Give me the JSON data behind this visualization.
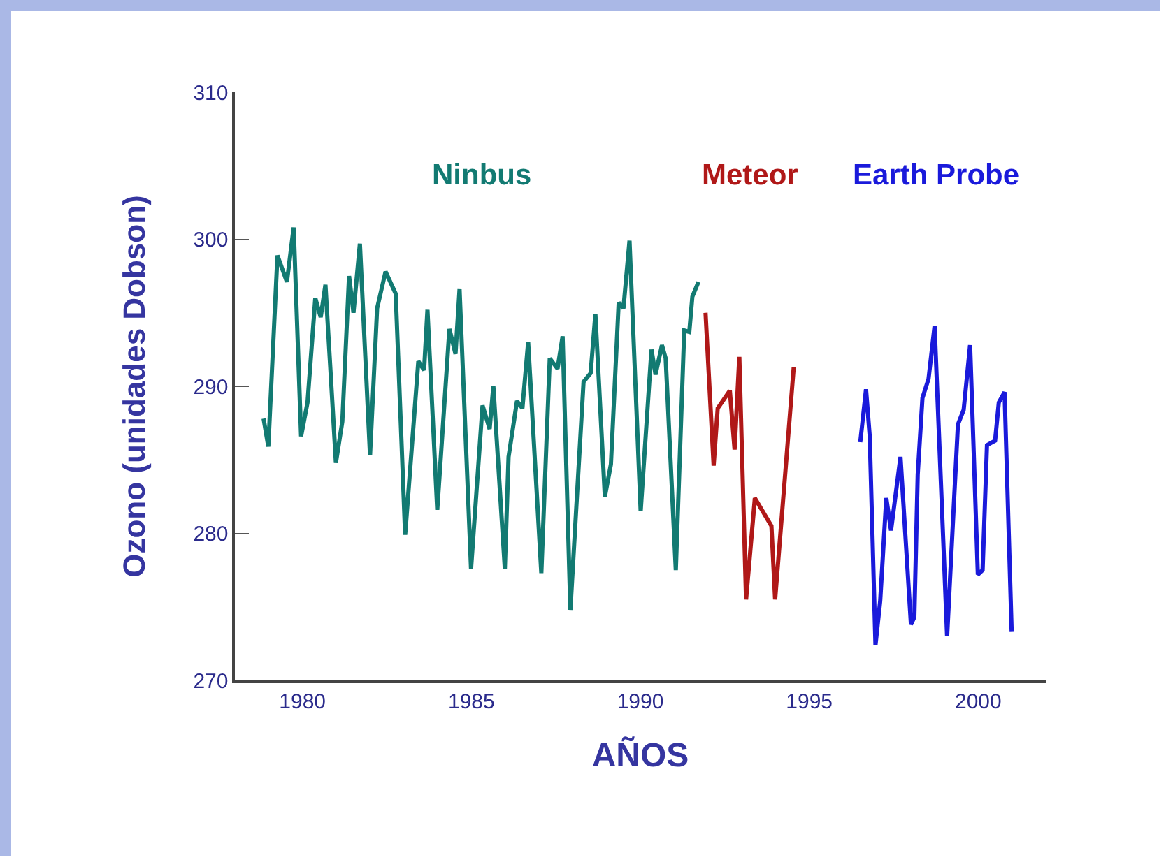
{
  "chart_data": {
    "type": "line",
    "xlabel": "AÑOS",
    "ylabel": "Ozono (unidades Dobson)",
    "xlim": [
      1978,
      2002
    ],
    "ylim": [
      270,
      310
    ],
    "xticks": [
      1980,
      1985,
      1990,
      1995,
      2000
    ],
    "yticks": [
      270,
      280,
      290,
      300,
      310
    ],
    "grid": false,
    "legend": false,
    "marker": "none",
    "line_style": "solid",
    "series": [
      {
        "name": "Ninbus",
        "color": "#127a72",
        "x": [
          1978.85,
          1978.99,
          1979.26,
          1979.54,
          1979.74,
          1979.96,
          1980.15,
          1980.38,
          1980.54,
          1980.68,
          1980.99,
          1981.18,
          1981.38,
          1981.51,
          1981.7,
          1982.0,
          1982.21,
          1982.46,
          1982.76,
          1983.04,
          1983.43,
          1983.6,
          1983.7,
          1983.99,
          1984.35,
          1984.53,
          1984.65,
          1984.99,
          1985.33,
          1985.54,
          1985.65,
          1985.99,
          1986.1,
          1986.35,
          1986.51,
          1986.68,
          1987.07,
          1987.32,
          1987.55,
          1987.7,
          1987.93,
          1988.32,
          1988.53,
          1988.67,
          1988.95,
          1989.13,
          1989.36,
          1989.5,
          1989.68,
          1990.01,
          1990.33,
          1990.45,
          1990.64,
          1990.75,
          1991.05,
          1991.3,
          1991.45,
          1991.54,
          1991.72
        ],
        "values": [
          287.8,
          285.9,
          298.9,
          297.1,
          300.8,
          286.6,
          288.9,
          296.0,
          294.7,
          296.9,
          284.8,
          287.6,
          297.5,
          295.0,
          299.7,
          285.3,
          295.3,
          297.8,
          296.3,
          279.9,
          291.7,
          291.1,
          295.2,
          281.6,
          293.9,
          292.2,
          296.6,
          277.6,
          288.7,
          287.1,
          290.0,
          277.6,
          285.2,
          289.0,
          288.5,
          293.0,
          277.3,
          291.9,
          291.2,
          293.4,
          274.8,
          290.3,
          290.9,
          294.9,
          282.5,
          284.7,
          295.7,
          295.3,
          299.9,
          281.5,
          292.5,
          290.8,
          292.8,
          291.9,
          277.5,
          293.8,
          293.7,
          296.1,
          297.1
        ]
      },
      {
        "name": "Meteor",
        "color": "#b01818",
        "x": [
          1991.93,
          1992.17,
          1992.29,
          1992.65,
          1992.79,
          1992.93,
          1993.13,
          1993.39,
          1993.88,
          1993.99,
          1994.54
        ],
        "values": [
          295.0,
          284.6,
          288.5,
          289.7,
          285.7,
          292.0,
          275.5,
          282.4,
          280.5,
          275.5,
          291.3
        ]
      },
      {
        "name": "Earth Probe",
        "color": "#1a1adb",
        "x": [
          1996.51,
          1996.68,
          1996.79,
          1996.96,
          1997.1,
          1997.28,
          1997.42,
          1997.7,
          1998.01,
          1998.11,
          1998.21,
          1998.35,
          1998.53,
          1998.71,
          1999.08,
          1999.4,
          1999.57,
          1999.76,
          1999.99,
          2000.13,
          2000.26,
          2000.5,
          2000.61,
          2000.78,
          2000.99
        ],
        "values": [
          286.2,
          289.8,
          286.6,
          272.4,
          275.4,
          282.4,
          280.2,
          285.2,
          273.8,
          274.3,
          284.0,
          289.2,
          290.5,
          294.1,
          273.0,
          287.4,
          288.4,
          292.8,
          277.2,
          277.5,
          286.0,
          286.3,
          288.9,
          289.6,
          273.3
        ]
      }
    ]
  }
}
